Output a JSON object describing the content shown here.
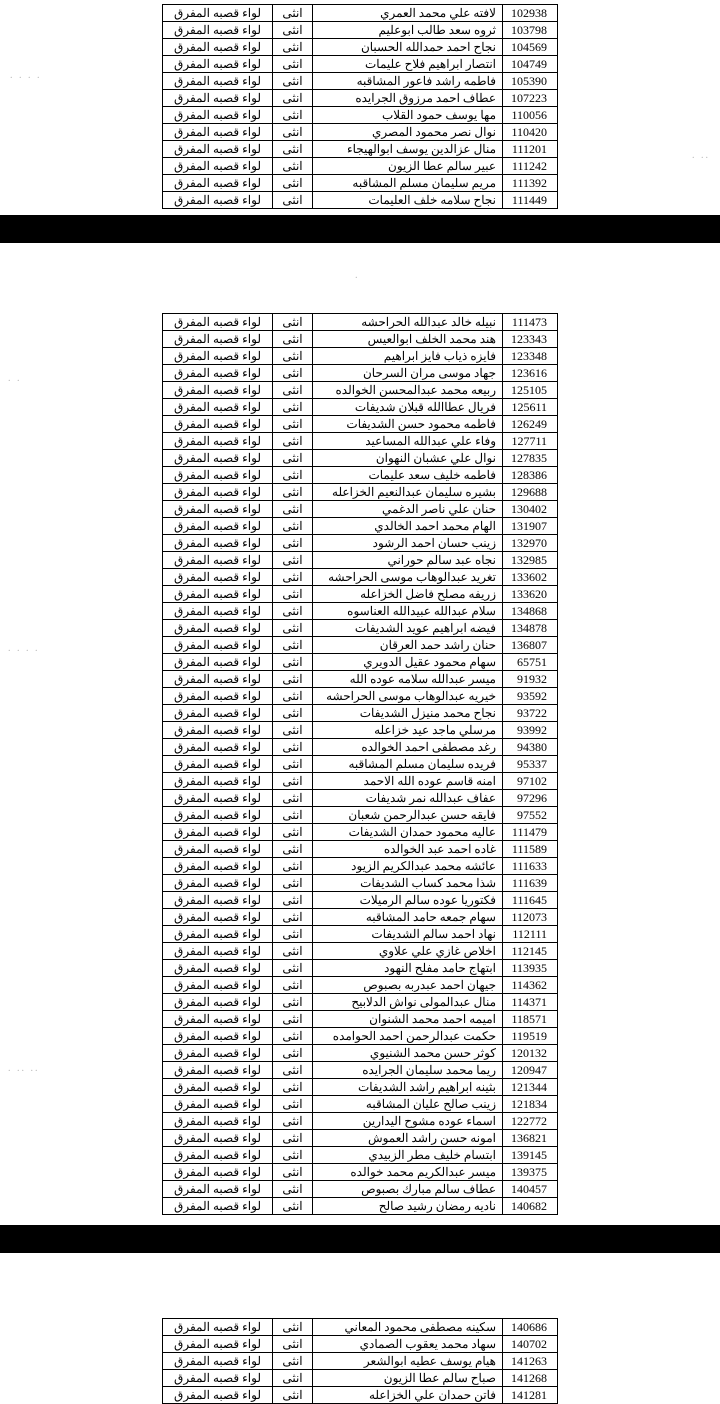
{
  "gender": "انثى",
  "district": "لواء قصبه المفرق",
  "tables": [
    {
      "rows": [
        {
          "id": "102938",
          "name": "لافته علي محمد العمري"
        },
        {
          "id": "103798",
          "name": "ثروه سعد طالب ابوعليم"
        },
        {
          "id": "104569",
          "name": "نجاح احمد حمدالله الحسبان"
        },
        {
          "id": "104749",
          "name": "انتصار ابراهيم فلاح عليمات"
        },
        {
          "id": "105390",
          "name": "فاطمه راشد فاعور المشاقبه"
        },
        {
          "id": "107223",
          "name": "عطاف احمد مرزوق الجرايده"
        },
        {
          "id": "110056",
          "name": "مها يوسف حمود القلاب"
        },
        {
          "id": "110420",
          "name": "نوال نصر محمود المصري"
        },
        {
          "id": "111201",
          "name": "منال عزالدين يوسف ابوالهيجاء"
        },
        {
          "id": "111242",
          "name": "عبير سالم عطا الزيون"
        },
        {
          "id": "111392",
          "name": "مريم سليمان مسلم المشاقبه"
        },
        {
          "id": "111449",
          "name": "نجاح سلامه خلف العليمات"
        }
      ]
    },
    {
      "rows": [
        {
          "id": "111473",
          "name": "نبيله خالد عبدالله الحراحشه"
        },
        {
          "id": "123343",
          "name": "هند محمد الخلف ابوالعيس"
        },
        {
          "id": "123348",
          "name": "فايزه ذياب فايز ابراهيم"
        },
        {
          "id": "123616",
          "name": "جهاد موسى مران السرحان"
        },
        {
          "id": "125105",
          "name": "ربيعه محمد عبدالمحسن الخوالده"
        },
        {
          "id": "125611",
          "name": "فريال عطاالله قبلان شديفات"
        },
        {
          "id": "126249",
          "name": "فاطمه محمود حسن الشديفات"
        },
        {
          "id": "127711",
          "name": "وفاء علي عبدالله المساعيد"
        },
        {
          "id": "127835",
          "name": "نوال علي عشبان النهوان"
        },
        {
          "id": "128386",
          "name": "فاطمه خليف سعد عليمات"
        },
        {
          "id": "129688",
          "name": "بشيره سليمان عبدالنعيم الخزاعله"
        },
        {
          "id": "130402",
          "name": "حنان علي ناصر الدغمي"
        },
        {
          "id": "131907",
          "name": "الهام محمد احمد الخالدي"
        },
        {
          "id": "132970",
          "name": "زينب حسان احمد الرشود"
        },
        {
          "id": "132985",
          "name": "نجاه عبد سالم حوراني"
        },
        {
          "id": "133602",
          "name": "تغريد عبدالوهاب موسى الحراحشه"
        },
        {
          "id": "133620",
          "name": "زريفه مصلح فاضل الخزاعله"
        },
        {
          "id": "134868",
          "name": "سلام عبدالله عبيدالله العناسوه"
        },
        {
          "id": "134878",
          "name": "فيضه ابراهيم عويد الشديفات"
        },
        {
          "id": "136807",
          "name": "حنان راشد حمد العرقان"
        },
        {
          "id": "65751",
          "name": "سهام محمود عقيل الدويري"
        },
        {
          "id": "91932",
          "name": "ميسر عبدالله سلامه عوده الله"
        },
        {
          "id": "93592",
          "name": "خيريه عبدالوهاب موسى الحراحشه"
        },
        {
          "id": "93722",
          "name": "نجاح محمد منيزل الشديفات"
        },
        {
          "id": "93992",
          "name": "مرسلي ماجد عيد خزاعله"
        },
        {
          "id": "94380",
          "name": "رغد مصطفى احمد الخوالده"
        },
        {
          "id": "95337",
          "name": "فريده سليمان مسلم المشاقبه"
        },
        {
          "id": "97102",
          "name": "امنه قاسم عوده الله الاحمد"
        },
        {
          "id": "97296",
          "name": "عفاف عبدالله نمر شديفات"
        },
        {
          "id": "97552",
          "name": "فايقه حسن عبدالرحمن شعبان"
        },
        {
          "id": "111479",
          "name": "عاليه محمود حمدان الشديفات"
        },
        {
          "id": "111589",
          "name": "غاده احمد عبد الخوالده"
        },
        {
          "id": "111633",
          "name": "عائشه محمد عبدالكريم الزيود"
        },
        {
          "id": "111639",
          "name": "شذا محمد كساب الشديفات"
        },
        {
          "id": "111645",
          "name": "فكتوريا عوده سالم الرميلات"
        },
        {
          "id": "112073",
          "name": "سهام جمعه حامد المشاقبه"
        },
        {
          "id": "112111",
          "name": "نهاد احمد سالم الشديفات"
        },
        {
          "id": "112145",
          "name": "اخلاص غازي علي علاوي"
        },
        {
          "id": "113935",
          "name": "ابتهاج حامد مفلح النهود"
        },
        {
          "id": "114362",
          "name": "جيهان احمد عبدربه بصبوص"
        },
        {
          "id": "114371",
          "name": "منال عبدالمولى نواش الدلابيح"
        },
        {
          "id": "118571",
          "name": "اميمه احمد محمد الشنوان"
        },
        {
          "id": "119519",
          "name": "حكمت عبدالرحمن احمد الحوامده"
        },
        {
          "id": "120132",
          "name": "كوثر حسن محمد الشنيوي"
        },
        {
          "id": "120947",
          "name": "ريما محمد سليمان الجرايده"
        },
        {
          "id": "121344",
          "name": "بثينه ابراهيم راشد الشديفات"
        },
        {
          "id": "121834",
          "name": "زينب صالح عليان المشاقبه"
        },
        {
          "id": "122772",
          "name": "اسماء عوده مشوح اليدارين"
        },
        {
          "id": "136821",
          "name": "امونه حسن راشد العموش"
        },
        {
          "id": "139145",
          "name": "ابتسام خليف مطر الزبيدي"
        },
        {
          "id": "139375",
          "name": "ميسر عبدالكريم محمد خوالده"
        },
        {
          "id": "140457",
          "name": "عطاف سالم مبارك بصبوص"
        },
        {
          "id": "140682",
          "name": "ناديه رمضان رشيد صالح"
        }
      ]
    },
    {
      "rows": [
        {
          "id": "140686",
          "name": "سكينه مصطفى محمود المعاني"
        },
        {
          "id": "140702",
          "name": "سهاد محمد يعقوب الصمادي"
        },
        {
          "id": "141263",
          "name": "هيام يوسف عطيه ابوالشعر"
        },
        {
          "id": "141268",
          "name": "صباح سالم عطا الزيون"
        },
        {
          "id": "141281",
          "name": "فاتن حمدان علي الخزاعله"
        }
      ]
    }
  ]
}
